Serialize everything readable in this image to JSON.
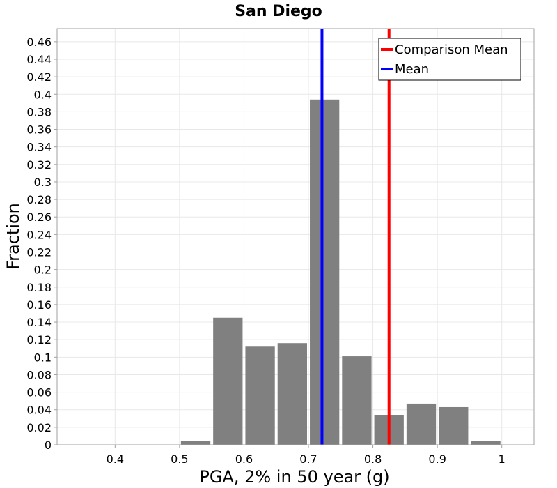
{
  "chart_data": {
    "type": "bar",
    "title": "San Diego",
    "xlabel": "PGA, 2% in 50 year (g)",
    "ylabel": "Fraction",
    "xlim": [
      0.31,
      1.05
    ],
    "ylim": [
      0,
      0.475
    ],
    "xticks": [
      0.4,
      0.5,
      0.6,
      0.7,
      0.8,
      0.9,
      1.0
    ],
    "xtick_labels": [
      "0.4",
      "0.5",
      "0.6",
      "0.7",
      "0.8",
      "0.9",
      "1"
    ],
    "yticks": [
      0,
      0.02,
      0.04,
      0.06,
      0.08,
      0.1,
      0.12,
      0.14,
      0.16,
      0.18,
      0.2,
      0.22,
      0.24,
      0.26,
      0.28,
      0.3,
      0.32,
      0.34,
      0.36,
      0.38,
      0.4,
      0.42,
      0.44,
      0.46
    ],
    "ytick_labels": [
      "0",
      "0.02",
      "0.04",
      "0.06",
      "0.08",
      "0.1",
      "0.12",
      "0.14",
      "0.16",
      "0.18",
      "0.2",
      "0.22",
      "0.24",
      "0.26",
      "0.28",
      "0.3",
      "0.32",
      "0.34",
      "0.36",
      "0.38",
      "0.4",
      "0.42",
      "0.44",
      "0.46"
    ],
    "bin_width": 0.05,
    "bins": [
      {
        "center": 0.525,
        "value": 0.004
      },
      {
        "center": 0.575,
        "value": 0.145
      },
      {
        "center": 0.625,
        "value": 0.112
      },
      {
        "center": 0.675,
        "value": 0.116
      },
      {
        "center": 0.725,
        "value": 0.394
      },
      {
        "center": 0.775,
        "value": 0.101
      },
      {
        "center": 0.825,
        "value": 0.034
      },
      {
        "center": 0.875,
        "value": 0.047
      },
      {
        "center": 0.925,
        "value": 0.043
      },
      {
        "center": 0.975,
        "value": 0.004
      }
    ],
    "bar_color": "#808080",
    "lines": [
      {
        "name": "Comparison Mean",
        "x": 0.825,
        "color": "#ff0000"
      },
      {
        "name": "Mean",
        "x": 0.721,
        "color": "#0000ff"
      }
    ],
    "legend_position": "top-right",
    "grid": true
  }
}
